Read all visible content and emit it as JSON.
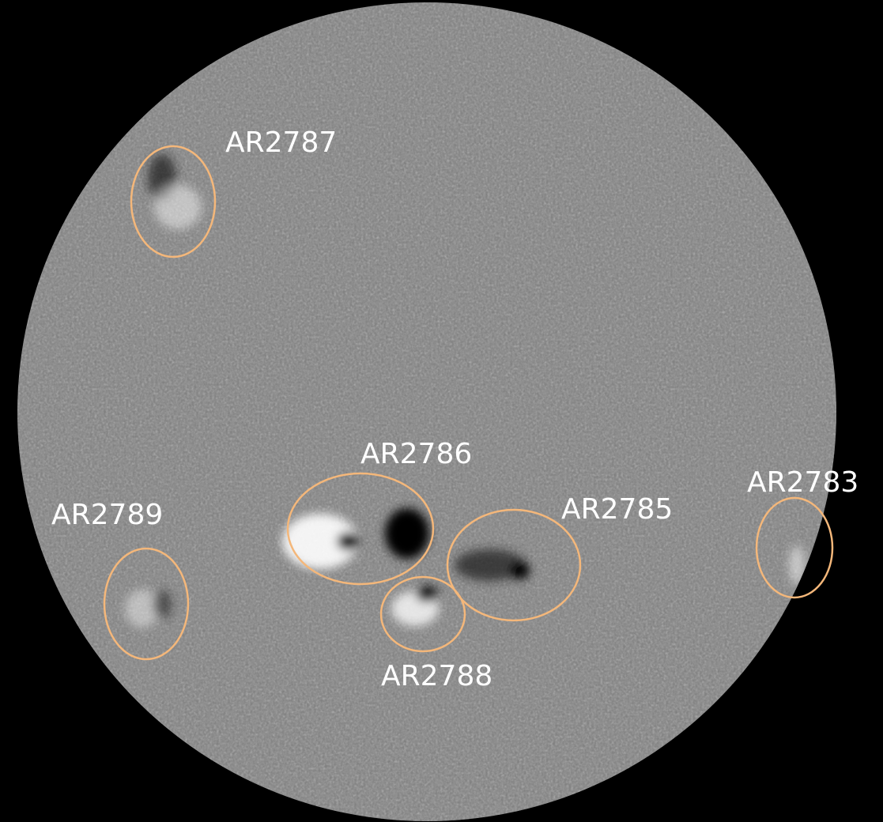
{
  "regions": [
    {
      "label": "AR2787"
    },
    {
      "label": "AR2786"
    },
    {
      "label": "AR2789"
    },
    {
      "label": "AR2785"
    },
    {
      "label": "AR2783"
    },
    {
      "label": "AR2788"
    }
  ]
}
